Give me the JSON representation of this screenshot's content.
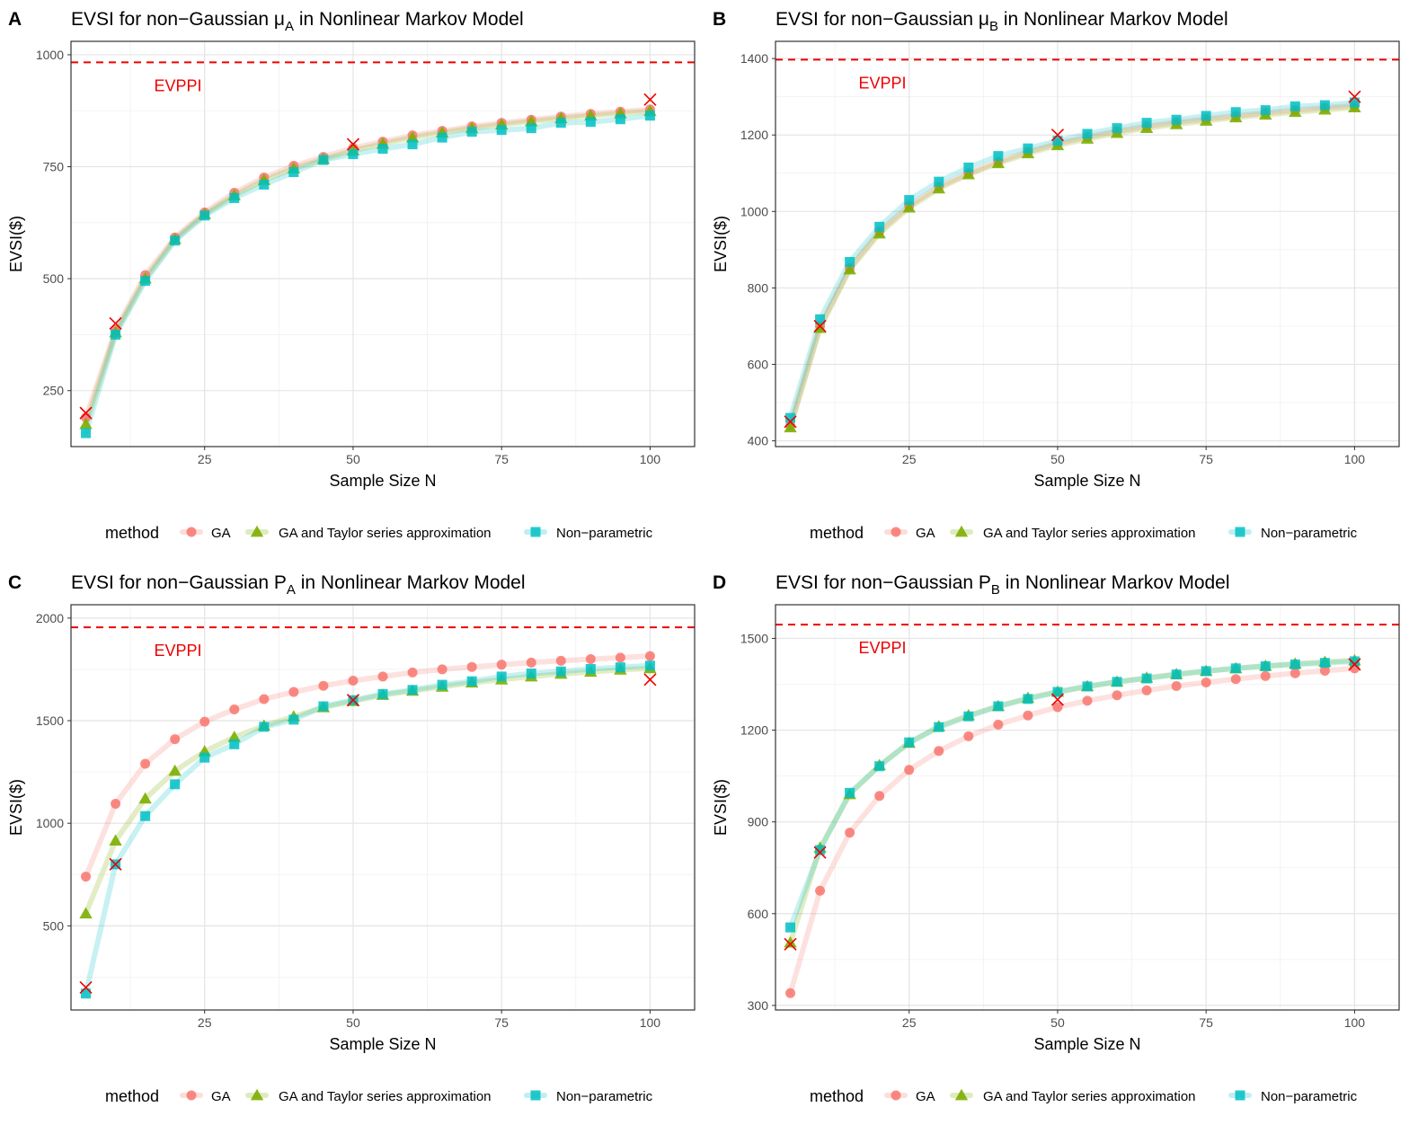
{
  "figure": {
    "legend_title": "method",
    "colors": {
      "GA": "#F8766D",
      "GA and Taylor series approximation": "#7CAE00",
      "Non-parametric": "#00BFC4",
      "reference": "#EE0000",
      "evppi": "#EE0000"
    }
  },
  "chart_data": [
    {
      "panel": "A",
      "type": "line",
      "title_prefix": "EVSI for non−Gaussian ",
      "title_symbol": "μ",
      "title_subscript": "A",
      "title_suffix": " in Nonlinear Markov Model",
      "xlabel": "Sample Size N",
      "ylabel": "EVSI($)",
      "xlim": [
        2.5,
        107.5
      ],
      "ylim": [
        125,
        1030
      ],
      "xticks": [
        25,
        50,
        75,
        100
      ],
      "yticks": [
        250,
        500,
        750,
        1000
      ],
      "evppi": 983,
      "evppi_label": "EVPPI",
      "x": [
        5,
        10,
        15,
        20,
        25,
        30,
        35,
        40,
        45,
        50,
        55,
        60,
        65,
        70,
        75,
        80,
        85,
        90,
        95,
        100
      ],
      "series": [
        {
          "name": "GA",
          "shape": "circle",
          "values": [
            190,
            385,
            508,
            592,
            648,
            692,
            726,
            752,
            772,
            792,
            806,
            820,
            830,
            840,
            848,
            855,
            862,
            868,
            873,
            878
          ]
        },
        {
          "name": "GA and Taylor series approximation",
          "shape": "triangle",
          "values": [
            175,
            380,
            500,
            588,
            644,
            686,
            720,
            746,
            767,
            786,
            801,
            815,
            826,
            836,
            844,
            851,
            858,
            864,
            869,
            874
          ]
        },
        {
          "name": "Non-parametric",
          "shape": "square",
          "values": [
            155,
            375,
            495,
            585,
            641,
            680,
            710,
            738,
            765,
            778,
            790,
            800,
            815,
            828,
            832,
            836,
            848,
            850,
            856,
            864
          ]
        }
      ],
      "reference": {
        "x": [
          5,
          10,
          50,
          100
        ],
        "values": [
          200,
          400,
          800,
          900
        ]
      },
      "legend_labels": [
        "GA",
        "GA and Taylor series approximation",
        "Non−parametric"
      ]
    },
    {
      "panel": "B",
      "type": "line",
      "title_prefix": "EVSI for non−Gaussian ",
      "title_symbol": "μ",
      "title_subscript": "B",
      "title_suffix": " in Nonlinear Markov Model",
      "xlabel": "Sample Size N",
      "ylabel": "EVSI($)",
      "xlim": [
        2.5,
        107.5
      ],
      "ylim": [
        385,
        1445
      ],
      "xticks": [
        25,
        50,
        75,
        100
      ],
      "yticks": [
        400,
        600,
        800,
        1000,
        1200,
        1400
      ],
      "evppi": 1397,
      "evppi_label": "EVPPI",
      "x": [
        5,
        10,
        15,
        20,
        25,
        30,
        35,
        40,
        45,
        50,
        55,
        60,
        65,
        70,
        75,
        80,
        85,
        90,
        95,
        100
      ],
      "series": [
        {
          "name": "GA",
          "shape": "circle",
          "values": [
            440,
            700,
            852,
            948,
            1015,
            1065,
            1100,
            1130,
            1156,
            1178,
            1195,
            1210,
            1223,
            1233,
            1242,
            1250,
            1258,
            1265,
            1271,
            1277
          ]
        },
        {
          "name": "GA and Taylor series approximation",
          "shape": "triangle",
          "values": [
            435,
            695,
            848,
            942,
            1010,
            1060,
            1097,
            1126,
            1152,
            1173,
            1190,
            1205,
            1218,
            1228,
            1237,
            1246,
            1253,
            1260,
            1266,
            1272
          ]
        },
        {
          "name": "Non-parametric",
          "shape": "square",
          "values": [
            460,
            718,
            868,
            960,
            1030,
            1078,
            1115,
            1145,
            1165,
            1185,
            1203,
            1218,
            1232,
            1240,
            1250,
            1260,
            1265,
            1275,
            1278,
            1285
          ]
        }
      ],
      "reference": {
        "x": [
          5,
          10,
          50,
          100
        ],
        "values": [
          450,
          700,
          1200,
          1300
        ]
      },
      "legend_labels": [
        "GA",
        "GA and Taylor series approximation",
        "Non−parametric"
      ]
    },
    {
      "panel": "C",
      "type": "line",
      "title_prefix": "EVSI for non−Gaussian ",
      "title_symbol": "P",
      "title_subscript": "A",
      "title_suffix": " in Nonlinear Markov Model",
      "xlabel": "Sample Size N",
      "ylabel": "EVSI($)",
      "xlim": [
        2.5,
        107.5
      ],
      "ylim": [
        90,
        2065
      ],
      "xticks": [
        25,
        50,
        75,
        100
      ],
      "yticks": [
        500,
        1000,
        1500,
        2000
      ],
      "evppi": 1955,
      "evppi_label": "EVPPI",
      "x": [
        5,
        10,
        15,
        20,
        25,
        30,
        35,
        40,
        45,
        50,
        55,
        60,
        65,
        70,
        75,
        80,
        85,
        90,
        95,
        100
      ],
      "series": [
        {
          "name": "GA",
          "shape": "circle",
          "values": [
            740,
            1095,
            1290,
            1410,
            1495,
            1555,
            1605,
            1640,
            1670,
            1695,
            1715,
            1735,
            1750,
            1762,
            1773,
            1783,
            1792,
            1800,
            1807,
            1815
          ]
        },
        {
          "name": "GA and Taylor series approximation",
          "shape": "triangle",
          "values": [
            560,
            915,
            1120,
            1255,
            1350,
            1420,
            1475,
            1520,
            1565,
            1595,
            1625,
            1645,
            1665,
            1685,
            1700,
            1715,
            1728,
            1738,
            1748,
            1755
          ]
        },
        {
          "name": "Non-parametric",
          "shape": "square",
          "values": [
            170,
            800,
            1035,
            1190,
            1320,
            1385,
            1470,
            1505,
            1570,
            1600,
            1630,
            1650,
            1675,
            1692,
            1715,
            1730,
            1740,
            1752,
            1760,
            1768
          ]
        }
      ],
      "reference": {
        "x": [
          5,
          10,
          50,
          100
        ],
        "values": [
          200,
          800,
          1600,
          1700
        ]
      },
      "legend_labels": [
        "GA",
        "GA and Taylor series approximation",
        "Non−parametric"
      ]
    },
    {
      "panel": "D",
      "type": "line",
      "title_prefix": "EVSI for non−Gaussian ",
      "title_symbol": "P",
      "title_subscript": "B",
      "title_suffix": " in Nonlinear Markov Model",
      "xlabel": "Sample Size N",
      "ylabel": "EVSI($)",
      "xlim": [
        2.5,
        107.5
      ],
      "ylim": [
        285,
        1610
      ],
      "xticks": [
        25,
        50,
        75,
        100
      ],
      "yticks": [
        300,
        600,
        900,
        1200,
        1500
      ],
      "evppi": 1545,
      "evppi_label": "EVPPI",
      "x": [
        5,
        10,
        15,
        20,
        25,
        30,
        35,
        40,
        45,
        50,
        55,
        60,
        65,
        70,
        75,
        80,
        85,
        90,
        95,
        100
      ],
      "series": [
        {
          "name": "GA",
          "shape": "circle",
          "values": [
            340,
            675,
            865,
            985,
            1070,
            1132,
            1180,
            1218,
            1248,
            1275,
            1296,
            1314,
            1330,
            1344,
            1356,
            1367,
            1377,
            1386,
            1394,
            1402
          ]
        },
        {
          "name": "GA and Taylor series approximation",
          "shape": "triangle",
          "values": [
            505,
            815,
            990,
            1085,
            1158,
            1212,
            1248,
            1278,
            1305,
            1325,
            1343,
            1358,
            1371,
            1383,
            1393,
            1402,
            1410,
            1417,
            1423,
            1428
          ]
        },
        {
          "name": "Non-parametric",
          "shape": "square",
          "values": [
            555,
            808,
            995,
            1082,
            1160,
            1210,
            1245,
            1278,
            1302,
            1325,
            1343,
            1358,
            1369,
            1382,
            1393,
            1402,
            1409,
            1415,
            1420,
            1425
          ]
        }
      ],
      "reference": {
        "x": [
          5,
          10,
          50,
          100
        ],
        "values": [
          500,
          800,
          1300,
          1415
        ]
      },
      "legend_labels": [
        "GA",
        "GA and Taylor series approximation",
        "Non−parametric"
      ]
    }
  ]
}
